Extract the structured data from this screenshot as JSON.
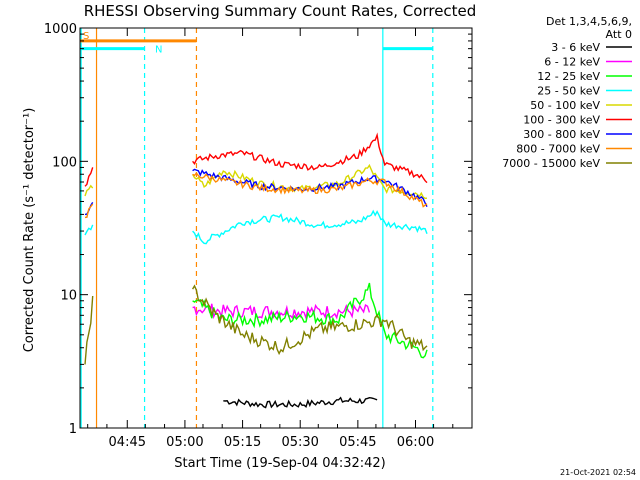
{
  "chart_data": {
    "type": "line",
    "title": "RHESSI Observing Summary Count Rates, Corrected",
    "xlabel": "Start Time (19-Sep-04 04:32:42)",
    "ylabel": "Corrected Count Rate (s⁻¹ detector⁻¹)",
    "y_scale": "log",
    "ylim": [
      1,
      1000
    ],
    "xlim_minutes_from_0432": [
      0,
      102
    ],
    "x_ticks": [
      "04:45",
      "05:00",
      "05:15",
      "05:30",
      "05:45",
      "06:00"
    ],
    "y_ticks": [
      "1",
      "10",
      "100",
      "1000"
    ],
    "legend_header": [
      "Det 1,3,4,5,6,9,",
      "Att 0"
    ],
    "legend_position": "right",
    "series": [
      {
        "name": "3 - 6 keV",
        "color": "#000000",
        "x": [
          "04:51:00",
          "05:10:00",
          "05:20:00",
          "05:30:00",
          "05:40:00",
          "05:50:00",
          "06:00:00"
        ],
        "values": [
          null,
          1.6,
          1.5,
          1.5,
          1.6,
          1.6,
          null
        ]
      },
      {
        "name": "6 - 12 keV",
        "color": "#ff00ff",
        "x": [
          "05:02:00",
          "05:10:00",
          "05:20:00",
          "05:30:00",
          "05:40:00",
          "05:48:00"
        ],
        "values": [
          8,
          7.5,
          7.5,
          7.5,
          7.5,
          7.5
        ]
      },
      {
        "name": "12 - 25 keV",
        "color": "#00ff00",
        "x": [
          "05:02:00",
          "05:10:00",
          "05:20:00",
          "05:30:00",
          "05:40:00",
          "05:48:00",
          "05:52:00",
          "06:00:00",
          "06:03:00"
        ],
        "values": [
          9,
          6.5,
          6.5,
          7,
          6.5,
          11,
          5,
          4,
          3.5
        ]
      },
      {
        "name": "25 - 50 keV",
        "color": "#00ffff",
        "x": [
          "04:34:00",
          "04:36:00",
          "05:02:00",
          "05:05:00",
          "05:15:00",
          "05:25:00",
          "05:35:00",
          "05:45:00",
          "05:50:00",
          "05:52:00",
          "06:00:00",
          "06:03:00"
        ],
        "values": [
          28,
          32,
          30,
          25,
          35,
          38,
          33,
          35,
          42,
          34,
          32,
          30
        ]
      },
      {
        "name": "50 - 100 keV",
        "color": "#d8d800",
        "x": [
          "04:34:00",
          "04:36:00",
          "05:02:00",
          "05:05:00",
          "05:10:00",
          "05:20:00",
          "05:30:00",
          "05:40:00",
          "05:48:00",
          "05:52:00",
          "06:00:00",
          "06:03:00"
        ],
        "values": [
          55,
          65,
          80,
          65,
          85,
          68,
          62,
          68,
          90,
          62,
          58,
          55
        ]
      },
      {
        "name": "100 - 300 keV",
        "color": "#ff0000",
        "x": [
          "04:34:00",
          "04:36:00",
          "05:02:00",
          "05:08:00",
          "05:15:00",
          "05:25:00",
          "05:35:00",
          "05:45:00",
          "05:50:00",
          "05:52:00",
          "06:00:00",
          "06:03:00"
        ],
        "values": [
          65,
          90,
          100,
          110,
          115,
          95,
          90,
          110,
          150,
          95,
          80,
          72
        ]
      },
      {
        "name": "300 - 800 keV",
        "color": "#0000ff",
        "x": [
          "04:34:00",
          "04:36:00",
          "05:02:00",
          "05:10:00",
          "05:20:00",
          "05:30:00",
          "05:40:00",
          "05:48:00",
          "05:52:00",
          "06:00:00",
          "06:03:00"
        ],
        "values": [
          40,
          48,
          85,
          75,
          65,
          62,
          65,
          75,
          72,
          55,
          48
        ]
      },
      {
        "name": "800 - 7000 keV",
        "color": "#ff8800",
        "x": [
          "04:34:00",
          "04:36:00",
          "05:02:00",
          "05:10:00",
          "05:20:00",
          "05:30:00",
          "05:40:00",
          "05:48:00",
          "05:52:00",
          "06:00:00",
          "06:03:00"
        ],
        "values": [
          38,
          46,
          80,
          72,
          63,
          60,
          62,
          72,
          70,
          52,
          46
        ]
      },
      {
        "name": "7000 - 15000 keV",
        "color": "#808000",
        "x": [
          "04:34:00",
          "04:36:00",
          "05:02:00",
          "05:08:00",
          "05:15:00",
          "05:25:00",
          "05:35:00",
          "05:45:00",
          "05:52:00",
          "05:58:00",
          "06:03:00"
        ],
        "values": [
          3,
          9,
          11,
          7,
          5,
          4,
          5.5,
          6,
          6.5,
          4.5,
          4
        ]
      }
    ],
    "annotations": {
      "flags": [
        {
          "label": "S",
          "color": "#ff8800",
          "x_start": "04:32:42",
          "x_end": "05:03:00",
          "y": 800
        },
        {
          "label": "N",
          "color": "#00ffff",
          "x_start": "04:32:42",
          "x_end": "04:49:30",
          "y": 700
        },
        {
          "label": "",
          "color": "#00ffff",
          "x_start": "05:51:30",
          "x_end": "06:04:30",
          "y": 700
        }
      ],
      "vertical_lines": [
        {
          "x": "04:33:00",
          "color": "#00ffff",
          "style": "solid"
        },
        {
          "x": "04:37:00",
          "color": "#ff8800",
          "style": "solid"
        },
        {
          "x": "04:49:30",
          "color": "#00ffff",
          "style": "dashed"
        },
        {
          "x": "05:03:00",
          "color": "#ff8800",
          "style": "dashed"
        },
        {
          "x": "05:51:30",
          "color": "#00ffff",
          "style": "solid"
        },
        {
          "x": "06:04:30",
          "color": "#00ffff",
          "style": "dashed"
        }
      ]
    },
    "timestamp": "21-Oct-2021 02:54"
  }
}
